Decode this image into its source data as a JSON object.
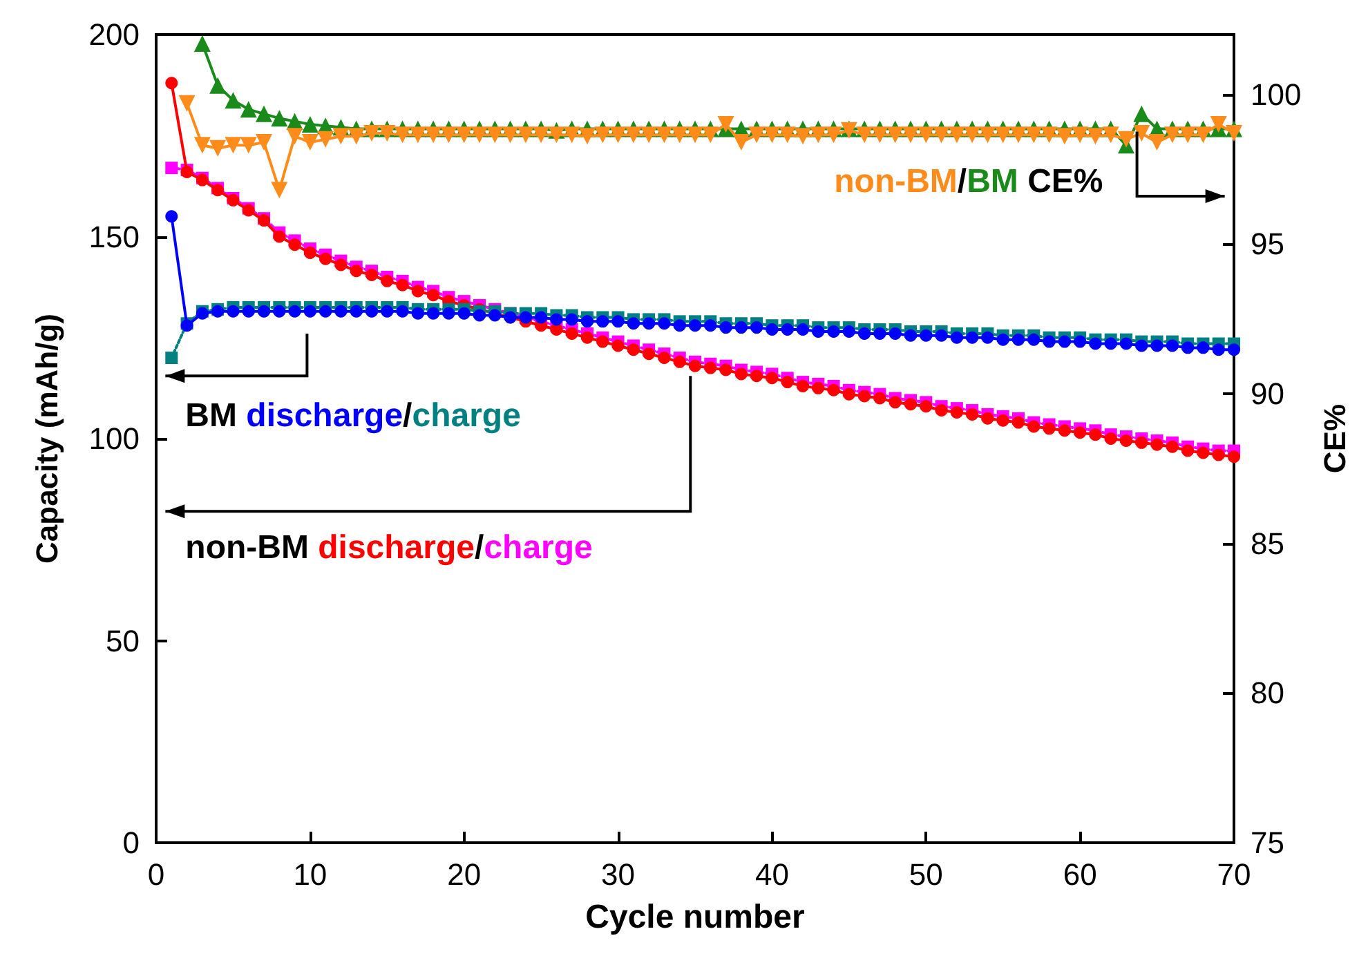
{
  "chart_data": {
    "type": "line",
    "xlabel": "Cycle number",
    "ylabel": "Capacity (mAh/g)",
    "y2label": "CE%",
    "x": [
      1,
      2,
      3,
      4,
      5,
      6,
      7,
      8,
      9,
      10,
      11,
      12,
      13,
      14,
      15,
      16,
      17,
      18,
      19,
      20,
      21,
      22,
      23,
      24,
      25,
      26,
      27,
      28,
      29,
      30,
      31,
      32,
      33,
      34,
      35,
      36,
      37,
      38,
      39,
      40,
      41,
      42,
      43,
      44,
      45,
      46,
      47,
      48,
      49,
      50,
      51,
      52,
      53,
      54,
      55,
      56,
      57,
      58,
      59,
      60,
      61,
      62,
      63,
      64,
      65,
      66,
      67,
      68,
      69,
      70
    ],
    "xlim": [
      0,
      70
    ],
    "xticks": [
      0,
      10,
      20,
      30,
      40,
      50,
      60,
      70
    ],
    "ylim": [
      0,
      200
    ],
    "yticks": [
      0,
      50,
      100,
      150,
      200
    ],
    "y2lim": [
      75,
      102
    ],
    "y2ticks": [
      75,
      80,
      85,
      90,
      95,
      100
    ],
    "grid": false,
    "annotations": [
      "BM discharge/charge",
      "non-BM discharge/charge",
      "non-BM/BM CE%"
    ],
    "series": [
      {
        "color": "#0000ff",
        "marker": "circle",
        "line_style": "solid",
        "values": [
          155,
          128,
          131,
          131.5,
          131.5,
          131.5,
          131.5,
          131.5,
          131.5,
          131.5,
          131.5,
          131.5,
          131.5,
          131.5,
          131.5,
          131.5,
          131,
          131,
          131,
          131,
          130.5,
          130.5,
          130,
          130,
          130,
          129.5,
          129.5,
          129,
          129,
          129,
          128.5,
          128.5,
          128.5,
          128,
          128,
          128,
          127.5,
          127.5,
          127.5,
          127,
          127,
          127,
          126.5,
          126.5,
          126.5,
          126,
          126,
          126,
          125.5,
          125.5,
          125.5,
          125,
          125,
          125,
          124.5,
          124.5,
          124.5,
          124,
          124,
          124,
          123.5,
          123.5,
          123.5,
          123,
          123,
          123,
          122.5,
          122.5,
          122,
          122
        ]
      },
      {
        "color": "#008080",
        "marker": "square",
        "line_style": "dotted",
        "values": [
          120,
          128.5,
          131.5,
          132,
          132.5,
          132.5,
          132.5,
          132.5,
          132.5,
          132.5,
          132.5,
          132.5,
          132.5,
          132.5,
          132.5,
          132.5,
          132,
          132,
          132,
          132,
          131.5,
          131.5,
          131,
          131,
          131,
          130.5,
          130.5,
          130,
          130,
          130,
          129.5,
          129.5,
          129.5,
          129,
          129,
          129,
          128.5,
          128.5,
          128.5,
          128,
          128,
          128,
          127.5,
          127.5,
          127.5,
          127,
          127,
          127,
          126.5,
          126.5,
          126.5,
          126,
          126,
          126,
          125.5,
          125.5,
          125.5,
          125,
          125,
          125,
          124.5,
          124.5,
          124.5,
          124,
          124,
          124,
          123.5,
          123.5,
          123.5,
          123.5
        ]
      },
      {
        "color": "#ff0000",
        "marker": "circle",
        "line_style": "solid",
        "values": [
          188,
          166,
          164,
          161.5,
          159,
          156.5,
          154,
          150,
          148,
          146,
          144.5,
          143,
          141.5,
          140.5,
          139,
          138,
          136.5,
          135.5,
          134,
          133,
          132,
          131,
          130,
          129,
          128,
          127,
          126,
          125,
          124,
          123,
          122,
          121,
          120,
          119,
          118,
          117.5,
          117,
          116,
          115.5,
          115,
          114,
          113,
          112.5,
          112,
          111,
          110.5,
          110,
          109,
          108.5,
          108,
          107,
          106.5,
          106,
          105,
          104.5,
          104,
          103,
          102.5,
          102,
          101.5,
          101,
          100,
          99.5,
          99,
          98.5,
          98,
          97,
          96.5,
          96,
          95.5
        ]
      },
      {
        "color": "#ff00ff",
        "marker": "square",
        "line_style": "dotted",
        "values": [
          167,
          166.5,
          164.5,
          162,
          159.5,
          157,
          154.5,
          151,
          149,
          147,
          145.5,
          144,
          142.5,
          141.5,
          140,
          139,
          137.5,
          136.5,
          135,
          134,
          133,
          132,
          131,
          130,
          129,
          128,
          127,
          126,
          125,
          124,
          123,
          122,
          121,
          120,
          119,
          118.5,
          118,
          117,
          116.5,
          116,
          115,
          114,
          113.5,
          113,
          112,
          111.5,
          111,
          110,
          109.5,
          109,
          108,
          107.5,
          107,
          106,
          105.5,
          105,
          104,
          103.5,
          103,
          102.5,
          102,
          101,
          100.5,
          100,
          99.5,
          99,
          98,
          97.5,
          97,
          97
        ]
      },
      {
        "color": "#ff8c1a",
        "marker": "triangle-down",
        "line_style": "solid",
        "axis": "y2",
        "values": [
          null,
          99.7,
          98.3,
          98.2,
          98.3,
          98.3,
          98.4,
          96.8,
          98.6,
          98.4,
          98.5,
          98.6,
          98.6,
          98.7,
          98.7,
          98.65,
          98.65,
          98.65,
          98.65,
          98.65,
          98.65,
          98.65,
          98.65,
          98.65,
          98.65,
          98.65,
          98.65,
          98.6,
          98.65,
          98.65,
          98.65,
          98.65,
          98.65,
          98.65,
          98.65,
          98.65,
          99.0,
          98.4,
          98.65,
          98.65,
          98.65,
          98.6,
          98.65,
          98.65,
          98.8,
          98.65,
          98.65,
          98.65,
          98.65,
          98.65,
          98.65,
          98.65,
          98.65,
          98.65,
          98.65,
          98.65,
          98.65,
          98.65,
          98.6,
          98.65,
          98.6,
          98.65,
          98.5,
          98.7,
          98.4,
          98.65,
          98.65,
          98.65,
          99.0,
          98.7
        ]
      },
      {
        "color": "#1a8a1a",
        "marker": "triangle",
        "line_style": "solid",
        "axis": "y2",
        "values": [
          null,
          null,
          101.7,
          100.3,
          99.8,
          99.5,
          99.35,
          99.2,
          99.1,
          99.0,
          98.95,
          98.9,
          98.85,
          98.85,
          98.85,
          98.85,
          98.85,
          98.85,
          98.85,
          98.85,
          98.85,
          98.85,
          98.85,
          98.85,
          98.85,
          98.8,
          98.85,
          98.85,
          98.85,
          98.85,
          98.85,
          98.85,
          98.85,
          98.85,
          98.85,
          98.85,
          98.85,
          98.85,
          98.85,
          98.85,
          98.85,
          98.85,
          98.85,
          98.85,
          98.85,
          98.85,
          98.85,
          98.85,
          98.85,
          98.85,
          98.85,
          98.85,
          98.85,
          98.85,
          98.85,
          98.85,
          98.85,
          98.85,
          98.85,
          98.85,
          98.85,
          98.85,
          98.3,
          99.35,
          98.85,
          98.85,
          98.85,
          98.85,
          98.85,
          98.85
        ]
      }
    ]
  }
}
